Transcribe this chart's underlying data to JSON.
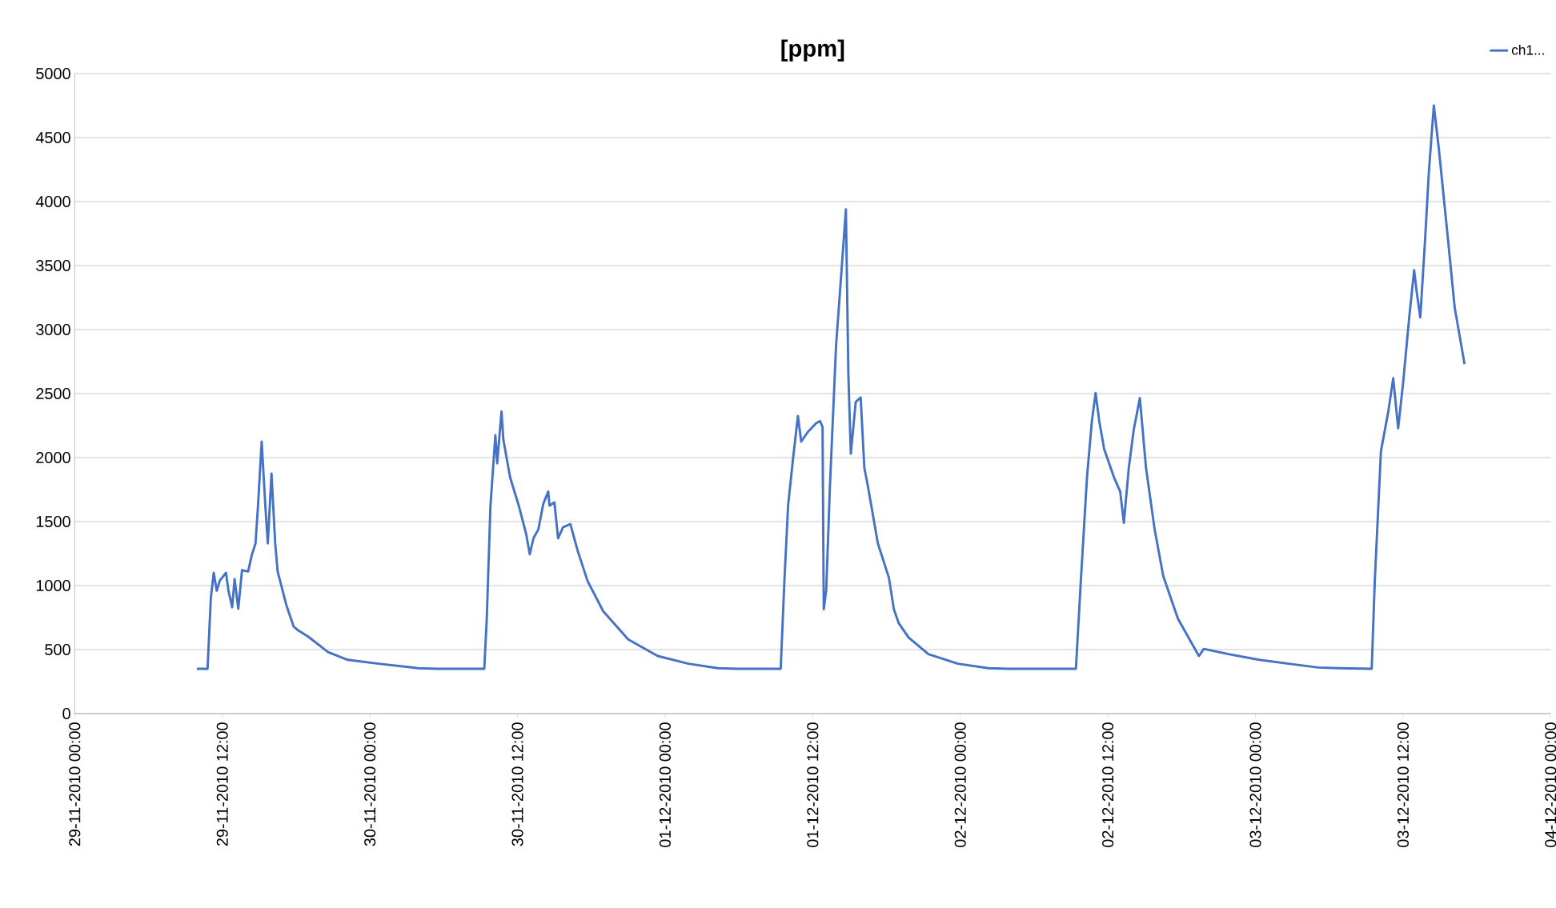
{
  "chart_data": {
    "type": "line",
    "title": "[ppm]",
    "xlim": [
      "2010-11-29T00:00",
      "2010-12-04T00:00"
    ],
    "xticks": [
      {
        "value": "2010-11-29T00:00",
        "label": "29-11-2010 00:00"
      },
      {
        "value": "2010-11-29T12:00",
        "label": "29-11-2010 12:00"
      },
      {
        "value": "2010-11-30T00:00",
        "label": "30-11-2010 00:00"
      },
      {
        "value": "2010-11-30T12:00",
        "label": "30-11-2010 12:00"
      },
      {
        "value": "2010-12-01T00:00",
        "label": "01-12-2010 00:00"
      },
      {
        "value": "2010-12-01T12:00",
        "label": "01-12-2010 12:00"
      },
      {
        "value": "2010-12-02T00:00",
        "label": "02-12-2010 00:00"
      },
      {
        "value": "2010-12-02T12:00",
        "label": "02-12-2010 12:00"
      },
      {
        "value": "2010-12-03T00:00",
        "label": "03-12-2010 00:00"
      },
      {
        "value": "2010-12-03T12:00",
        "label": "03-12-2010 12:00"
      },
      {
        "value": "2010-12-04T00:00",
        "label": "04-12-2010 00:00"
      }
    ],
    "ylim": [
      0,
      5000
    ],
    "yticks": [
      0,
      500,
      1000,
      1500,
      2000,
      2500,
      3000,
      3500,
      4000,
      4500,
      5000
    ],
    "grid": "y",
    "legend": "top right",
    "marker": "none",
    "line_style": "solid",
    "x": [
      "2010-11-29T09:56",
      "2010-11-29T10:48",
      "2010-11-29T11:04",
      "2010-11-29T11:18",
      "2010-11-29T11:33",
      "2010-11-29T11:48",
      "2010-11-29T12:18",
      "2010-11-29T12:30",
      "2010-11-29T12:48",
      "2010-11-29T13:00",
      "2010-11-29T13:18",
      "2010-11-29T13:36",
      "2010-11-29T14:06",
      "2010-11-29T14:24",
      "2010-11-29T14:42",
      "2010-11-29T14:54",
      "2010-11-29T15:12",
      "2010-11-29T15:30",
      "2010-11-29T15:42",
      "2010-11-29T16:00",
      "2010-11-29T16:18",
      "2010-11-29T16:30",
      "2010-11-29T17:12",
      "2010-11-29T17:48",
      "2010-11-29T18:06",
      "2010-11-29T19:00",
      "2010-11-29T20:36",
      "2010-11-29T22:12",
      "2010-11-30T00:42",
      "2010-11-30T03:54",
      "2010-11-30T05:30",
      "2010-11-30T09:18",
      "2010-11-30T09:30",
      "2010-11-30T09:48",
      "2010-11-30T10:12",
      "2010-11-30T10:21",
      "2010-11-30T10:42",
      "2010-11-30T10:51",
      "2010-11-30T11:24",
      "2010-11-30T12:06",
      "2010-11-30T12:42",
      "2010-11-30T13:00",
      "2010-11-30T13:18",
      "2010-11-30T13:42",
      "2010-11-30T14:06",
      "2010-11-30T14:30",
      "2010-11-30T14:36",
      "2010-11-30T15:00",
      "2010-11-30T15:18",
      "2010-11-30T15:42",
      "2010-11-30T16:18",
      "2010-11-30T16:54",
      "2010-11-30T17:42",
      "2010-11-30T18:58",
      "2010-11-30T21:00",
      "2010-11-30T23:24",
      "2010-12-01T01:54",
      "2010-12-01T04:18",
      "2010-12-01T05:54",
      "2010-12-01T09:24",
      "2010-12-01T09:42",
      "2010-12-01T10:00",
      "2010-12-01T10:24",
      "2010-12-01T10:48",
      "2010-12-01T11:04",
      "2010-12-01T11:36",
      "2010-12-01T12:18",
      "2010-12-01T12:36",
      "2010-12-01T12:48",
      "2010-12-01T12:54",
      "2010-12-01T13:06",
      "2010-12-01T13:24",
      "2010-12-01T13:54",
      "2010-12-01T14:24",
      "2010-12-01T14:42",
      "2010-12-01T14:54",
      "2010-12-01T15:06",
      "2010-12-01T15:30",
      "2010-12-01T15:54",
      "2010-12-01T16:12",
      "2010-12-01T16:30",
      "2010-12-01T17:18",
      "2010-12-01T18:12",
      "2010-12-01T18:36",
      "2010-12-01T19:00",
      "2010-12-01T19:48",
      "2010-12-01T21:24",
      "2010-12-01T23:48",
      "2010-12-02T02:18",
      "2010-12-02T03:54",
      "2010-12-02T09:24",
      "2010-12-02T09:48",
      "2010-12-02T10:18",
      "2010-12-02T10:42",
      "2010-12-02T11:00",
      "2010-12-02T11:18",
      "2010-12-02T11:42",
      "2010-12-02T12:30",
      "2010-12-02T13:00",
      "2010-12-02T13:18",
      "2010-12-02T13:42",
      "2010-12-02T14:06",
      "2010-12-02T14:36",
      "2010-12-02T15:06",
      "2010-12-02T15:48",
      "2010-12-02T16:30",
      "2010-12-02T17:42",
      "2010-12-02T19:24",
      "2010-12-02T19:48",
      "2010-12-02T21:48",
      "2010-12-03T00:18",
      "2010-12-03T02:42",
      "2010-12-03T05:06",
      "2010-12-03T06:48",
      "2010-12-03T09:27",
      "2010-12-03T09:42",
      "2010-12-03T10:12",
      "2010-12-03T10:48",
      "2010-12-03T11:12",
      "2010-12-03T11:36",
      "2010-12-03T12:00",
      "2010-12-03T12:30",
      "2010-12-03T12:54",
      "2010-12-03T13:06",
      "2010-12-03T13:24",
      "2010-12-03T13:48",
      "2010-12-03T14:06",
      "2010-12-03T14:30",
      "2010-12-03T14:54",
      "2010-12-03T15:36",
      "2010-12-03T16:12",
      "2010-12-03T17:00"
    ],
    "series": [
      {
        "name": "ch1...",
        "color": "#4472c4",
        "values": [
          350,
          350,
          900,
          1100,
          960,
          1040,
          1100,
          960,
          830,
          1050,
          820,
          1120,
          1110,
          1240,
          1330,
          1620,
          2125,
          1620,
          1330,
          1875,
          1330,
          1110,
          850,
          680,
          655,
          600,
          480,
          420,
          390,
          355,
          350,
          350,
          740,
          1620,
          2175,
          1955,
          2360,
          2140,
          1845,
          1625,
          1405,
          1245,
          1370,
          1440,
          1640,
          1735,
          1625,
          1650,
          1370,
          1455,
          1480,
          1270,
          1035,
          800,
          580,
          450,
          390,
          355,
          350,
          350,
          1035,
          1625,
          1990,
          2325,
          2125,
          2200,
          2270,
          2285,
          2240,
          815,
          965,
          1770,
          2875,
          3535,
          3940,
          2655,
          2030,
          2435,
          2470,
          1920,
          1770,
          1330,
          1060,
          815,
          705,
          595,
          465,
          390,
          355,
          350,
          350,
          1035,
          1845,
          2285,
          2505,
          2285,
          2065,
          1845,
          1735,
          1490,
          1920,
          2215,
          2465,
          1920,
          1440,
          1075,
          740,
          450,
          505,
          465,
          420,
          390,
          360,
          355,
          350,
          1035,
          2050,
          2360,
          2620,
          2230,
          2580,
          3095,
          3465,
          3300,
          3095,
          3720,
          4235,
          4750,
          4420,
          3755,
          3170,
          2730
        ]
      }
    ]
  }
}
